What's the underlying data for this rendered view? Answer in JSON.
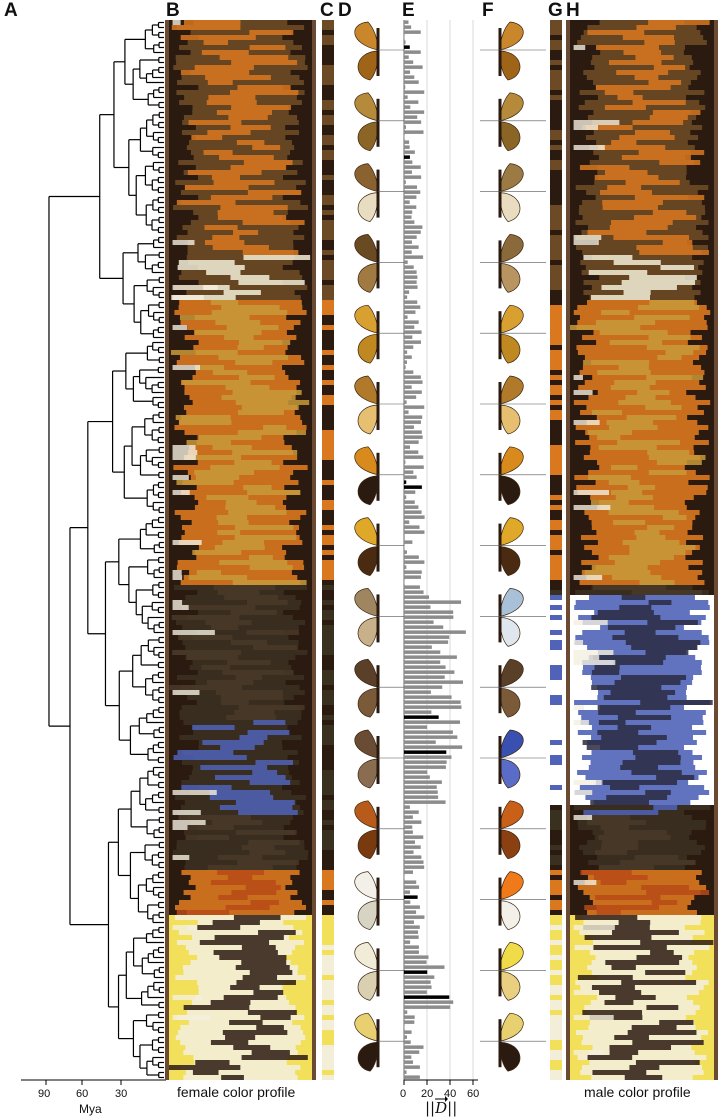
{
  "panels": {
    "A": "A",
    "B": "B",
    "C": "C",
    "D": "D",
    "E": "E",
    "F": "F",
    "G": "G",
    "H": "H"
  },
  "tree_axis": {
    "ticks": [
      "90",
      "60",
      "30"
    ],
    "unit": "Mya"
  },
  "captions": {
    "female": "female color profile",
    "male": "male color profile"
  },
  "bar_axis": {
    "ticks": [
      "0",
      "20",
      "40",
      "60"
    ],
    "label": "||D||"
  },
  "colors": {
    "brown_dark": "#2b1a10",
    "brown_mid": "#6b4a25",
    "orange": "#d9781e",
    "ochre": "#c89a3a",
    "cream": "#f3eed8",
    "yellow": "#f2e05a",
    "blue": "#5063b8",
    "grey_bar": "#8c8c8c",
    "black_bar": "#000000",
    "frame": "#6b4a33"
  },
  "butterflies": [
    {
      "name": "butterfly-orange-ringlet",
      "colors": [
        "#c9862b",
        "#a06418"
      ],
      "male_colors": [
        "#c9862b",
        "#a06418"
      ]
    },
    {
      "name": "butterfly-tawny-heath",
      "colors": [
        "#b58a3a",
        "#8a6526"
      ],
      "male_colors": [
        "#b58a3a",
        "#8a6526"
      ]
    },
    {
      "name": "butterfly-eyed-brown",
      "colors": [
        "#8a6230",
        "#e8ddc0"
      ],
      "male_colors": [
        "#9c7a44",
        "#e8ddc0"
      ]
    },
    {
      "name": "butterfly-dark-brown",
      "colors": [
        "#6a4a22",
        "#a07a40"
      ],
      "male_colors": [
        "#8a6a3a",
        "#b89460"
      ]
    },
    {
      "name": "butterfly-golden-skipper",
      "colors": [
        "#d8a030",
        "#c08820"
      ],
      "male_colors": [
        "#d8a030",
        "#c08820"
      ]
    },
    {
      "name": "butterfly-spotted-fritillary",
      "colors": [
        "#b07a2a",
        "#e6c070"
      ],
      "male_colors": [
        "#b07a2a",
        "#e6c070"
      ]
    },
    {
      "name": "butterfly-comma",
      "colors": [
        "#d88a1c",
        "#2b1a10"
      ],
      "male_colors": [
        "#d88a1c",
        "#2b1a10"
      ]
    },
    {
      "name": "butterfly-fritillary",
      "colors": [
        "#e0a828",
        "#4a2a10"
      ],
      "male_colors": [
        "#e0a828",
        "#4a2a10"
      ]
    },
    {
      "name": "butterfly-silver-blue",
      "colors": [
        "#a08660",
        "#c8b08a"
      ],
      "male_colors": [
        "#a8c0d8",
        "#e0e6ee"
      ]
    },
    {
      "name": "butterfly-chocolate-argus",
      "colors": [
        "#5a4028",
        "#7a5a38"
      ],
      "male_colors": [
        "#5a4028",
        "#7a5a38"
      ]
    },
    {
      "name": "butterfly-common-blue",
      "colors": [
        "#6a4c34",
        "#8a6c50"
      ],
      "male_colors": [
        "#3a50b0",
        "#5a6cc8"
      ]
    },
    {
      "name": "butterfly-copper",
      "colors": [
        "#b85a1a",
        "#7a3a10"
      ],
      "male_colors": [
        "#c8601a",
        "#8a4010"
      ]
    },
    {
      "name": "butterfly-orange-tip",
      "colors": [
        "#f2f0e8",
        "#d8d4c4"
      ],
      "male_colors": [
        "#f07a1a",
        "#f2f0e8"
      ]
    },
    {
      "name": "butterfly-clouded-yellow",
      "colors": [
        "#f0ecd8",
        "#d8d0b0"
      ],
      "male_colors": [
        "#f0dc48",
        "#e8d080"
      ]
    },
    {
      "name": "butterfly-swallowtail",
      "colors": [
        "#e8d070",
        "#2b1a10"
      ],
      "male_colors": [
        "#e8d070",
        "#2b1a10"
      ]
    }
  ]
}
